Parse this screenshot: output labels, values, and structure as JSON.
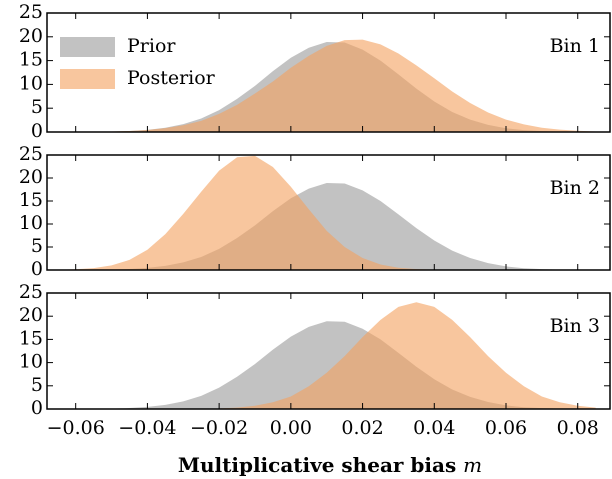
{
  "chart_data": [
    {
      "type": "area",
      "annotation": "Bin 1",
      "legend": "upper left",
      "grid": false,
      "x": [
        -0.065,
        -0.06,
        -0.055,
        -0.05,
        -0.045,
        -0.04,
        -0.035,
        -0.03,
        -0.025,
        -0.02,
        -0.015,
        -0.01,
        -0.005,
        0,
        0.005,
        0.01,
        0.015,
        0.02,
        0.025,
        0.03,
        0.035,
        0.04,
        0.045,
        0.05,
        0.055,
        0.06,
        0.065,
        0.07,
        0.075,
        0.08,
        0.085
      ],
      "series": [
        {
          "name": "Prior",
          "color": "#999999",
          "values": [
            0,
            0.01,
            0.04,
            0.09,
            0.21,
            0.45,
            0.9,
            1.65,
            2.83,
            4.6,
            6.95,
            9.7,
            12.8,
            15.6,
            17.7,
            18.9,
            18.8,
            17.3,
            15.0,
            12.1,
            9.1,
            6.4,
            4.2,
            2.6,
            1.5,
            0.78,
            0.39,
            0.18,
            0.08,
            0.03,
            0.01
          ]
        },
        {
          "name": "Posterior",
          "color": "#f4a05e",
          "values": [
            0.01,
            0.02,
            0.05,
            0.1,
            0.22,
            0.43,
            0.81,
            1.42,
            2.34,
            3.8,
            5.7,
            8.1,
            10.6,
            13.5,
            16.0,
            18.1,
            19.3,
            19.4,
            18.4,
            16.5,
            14.0,
            11.3,
            8.5,
            6.1,
            4.1,
            2.6,
            1.6,
            0.9,
            0.5,
            0.25,
            0.1
          ]
        }
      ],
      "xlim": [
        -0.068,
        0.089
      ],
      "ylim": [
        0,
        25
      ],
      "yticks": [
        0,
        5,
        10,
        15,
        20,
        25
      ]
    },
    {
      "type": "area",
      "annotation": "Bin 2",
      "grid": false,
      "x": [
        -0.065,
        -0.06,
        -0.055,
        -0.05,
        -0.045,
        -0.04,
        -0.035,
        -0.03,
        -0.025,
        -0.02,
        -0.015,
        -0.01,
        -0.005,
        0,
        0.005,
        0.01,
        0.015,
        0.02,
        0.025,
        0.03,
        0.035,
        0.04,
        0.045,
        0.05,
        0.055,
        0.06,
        0.065,
        0.07,
        0.075,
        0.08,
        0.085
      ],
      "series": [
        {
          "name": "Prior",
          "color": "#999999",
          "values": [
            0,
            0.01,
            0.04,
            0.09,
            0.21,
            0.45,
            0.9,
            1.65,
            2.83,
            4.6,
            6.95,
            9.7,
            12.8,
            15.6,
            17.7,
            18.9,
            18.8,
            17.3,
            15.0,
            12.1,
            9.1,
            6.4,
            4.2,
            2.6,
            1.5,
            0.78,
            0.39,
            0.18,
            0.08,
            0.03,
            0.01
          ]
        },
        {
          "name": "Posterior",
          "color": "#f4a05e",
          "values": [
            0.05,
            0.15,
            0.41,
            1.0,
            2.2,
            4.4,
            7.8,
            12.2,
            17.0,
            21.6,
            24.5,
            24.8,
            22.4,
            18.1,
            13.2,
            8.5,
            5.0,
            2.6,
            1.2,
            0.5,
            0.19,
            0.07,
            0.02,
            0.01,
            0,
            0,
            0,
            0,
            0,
            0,
            0
          ]
        }
      ],
      "xlim": [
        -0.068,
        0.089
      ],
      "ylim": [
        0,
        25
      ],
      "yticks": [
        0,
        5,
        10,
        15,
        20,
        25
      ]
    },
    {
      "type": "area",
      "annotation": "Bin 3",
      "grid": false,
      "x": [
        -0.065,
        -0.06,
        -0.055,
        -0.05,
        -0.045,
        -0.04,
        -0.035,
        -0.03,
        -0.025,
        -0.02,
        -0.015,
        -0.01,
        -0.005,
        0,
        0.005,
        0.01,
        0.015,
        0.02,
        0.025,
        0.03,
        0.035,
        0.04,
        0.045,
        0.05,
        0.055,
        0.06,
        0.065,
        0.07,
        0.075,
        0.08,
        0.085
      ],
      "series": [
        {
          "name": "Prior",
          "color": "#999999",
          "values": [
            0,
            0.01,
            0.04,
            0.09,
            0.21,
            0.45,
            0.9,
            1.65,
            2.83,
            4.6,
            6.95,
            9.7,
            12.8,
            15.6,
            17.7,
            18.9,
            18.8,
            17.3,
            15.0,
            12.1,
            9.1,
            6.4,
            4.2,
            2.6,
            1.5,
            0.78,
            0.39,
            0.18,
            0.08,
            0.03,
            0.01
          ]
        },
        {
          "name": "Posterior",
          "color": "#f4a05e",
          "values": [
            0,
            0,
            0,
            0,
            0,
            0,
            0.01,
            0.02,
            0.05,
            0.12,
            0.3,
            0.7,
            1.45,
            2.7,
            4.9,
            7.8,
            11.4,
            15.5,
            19.2,
            22.0,
            23,
            22.0,
            19.2,
            15.5,
            11.4,
            7.8,
            4.9,
            2.7,
            1.45,
            0.7,
            0.3
          ]
        }
      ],
      "xlim": [
        -0.068,
        0.089
      ],
      "ylim": [
        0,
        25
      ],
      "yticks": [
        0,
        5,
        10,
        15,
        20,
        25
      ],
      "xticks": [
        {
          "value": -0.06,
          "label": "−0.06"
        },
        {
          "value": -0.04,
          "label": "−0.04"
        },
        {
          "value": -0.02,
          "label": "−0.02"
        },
        {
          "value": 0,
          "label": "0.00"
        },
        0.02,
        0.04,
        0.06,
        0.08
      ],
      "xlabel": "Multiplicative shear bias",
      "xlabel_symbol": "m"
    }
  ]
}
